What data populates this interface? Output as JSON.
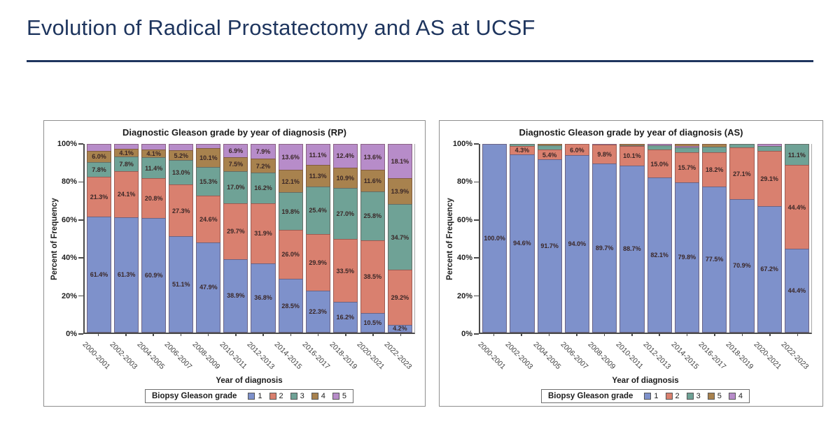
{
  "page": {
    "title": "Evolution of Radical Prostatectomy and AS at UCSF"
  },
  "chart_data": [
    {
      "type": "bar",
      "subtype": "stacked-percent",
      "title": "Diagnostic Gleason grade by year of diagnosis (RP)",
      "xlabel": "Year of diagnosis",
      "ylabel": "Percent of Frequency",
      "ylim": [
        0,
        100
      ],
      "yticks": [
        "0%",
        "20%",
        "40%",
        "60%",
        "80%",
        "100%"
      ],
      "grid": false,
      "legend_position": "bottom",
      "legend_title": "Biopsy Gleason grade",
      "legend": [
        {
          "label": "1",
          "color": "#7e91cb"
        },
        {
          "label": "2",
          "color": "#d9806f"
        },
        {
          "label": "3",
          "color": "#6fa296"
        },
        {
          "label": "4",
          "color": "#a8824e"
        },
        {
          "label": "5",
          "color": "#b78cc9"
        }
      ],
      "categories": [
        "2000-2001",
        "2002-2003",
        "2004-2005",
        "2006-2007",
        "2008-2009",
        "2010-2011",
        "2012-2013",
        "2014-2015",
        "2016-2017",
        "2018-2019",
        "2020-2021",
        "2022-2023"
      ],
      "series": [
        {
          "name": "Gleason grade 1",
          "color": "#7e91cb",
          "values": [
            61.4,
            61.3,
            60.9,
            51.1,
            47.9,
            38.9,
            36.8,
            28.5,
            22.3,
            16.2,
            10.5,
            4.2
          ],
          "labels": [
            "61.4%",
            "61.3%",
            "60.9%",
            "51.1%",
            "47.9%",
            "38.9%",
            "36.8%",
            "28.5%",
            "22.3%",
            "16.2%",
            "10.5%",
            "4.2%"
          ]
        },
        {
          "name": "Gleason grade 2",
          "color": "#d9806f",
          "values": [
            21.3,
            24.1,
            20.8,
            27.3,
            24.6,
            29.7,
            31.9,
            26.0,
            29.9,
            33.5,
            38.5,
            29.2
          ],
          "labels": [
            "21.3%",
            "24.1%",
            "20.8%",
            "27.3%",
            "24.6%",
            "29.7%",
            "31.9%",
            "26.0%",
            "29.9%",
            "33.5%",
            "38.5%",
            "29.2%"
          ]
        },
        {
          "name": "Gleason grade 3",
          "color": "#6fa296",
          "values": [
            7.8,
            7.8,
            11.4,
            13.0,
            15.3,
            17.0,
            16.2,
            19.8,
            25.4,
            27.0,
            25.8,
            34.7
          ],
          "labels": [
            "7.8%",
            "7.8%",
            "11.4%",
            "13.0%",
            "15.3%",
            "17.0%",
            "16.2%",
            "19.8%",
            "25.4%",
            "27.0%",
            "25.8%",
            "34.7%"
          ]
        },
        {
          "name": "Gleason grade 4",
          "color": "#a8824e",
          "values": [
            6.0,
            4.1,
            4.1,
            5.2,
            10.1,
            7.5,
            7.2,
            12.1,
            11.3,
            10.9,
            11.6,
            13.9
          ],
          "labels": [
            "6.0%",
            "4.1%",
            "4.1%",
            "5.2%",
            "10.1%",
            "7.5%",
            "7.2%",
            "12.1%",
            "11.3%",
            "10.9%",
            "11.6%",
            "13.9%"
          ]
        },
        {
          "name": "Gleason grade 5",
          "color": "#b78cc9",
          "values": [
            3.5,
            2.7,
            2.8,
            3.4,
            2.1,
            6.9,
            7.9,
            13.6,
            11.1,
            12.4,
            13.6,
            18.1
          ],
          "labels": [
            "",
            "",
            "",
            "",
            "",
            "6.9%",
            "7.9%",
            "13.6%",
            "11.1%",
            "12.4%",
            "13.6%",
            "18.1%"
          ]
        }
      ]
    },
    {
      "type": "bar",
      "subtype": "stacked-percent",
      "title": "Diagnostic Gleason grade by year of diagnosis (AS)",
      "xlabel": "Year of diagnosis",
      "ylabel": "Percent of Frequency",
      "ylim": [
        0,
        100
      ],
      "yticks": [
        "0%",
        "20%",
        "40%",
        "60%",
        "80%",
        "100%"
      ],
      "grid": false,
      "legend_position": "bottom",
      "legend_title": "Biopsy Gleason grade",
      "legend": [
        {
          "label": "1",
          "color": "#7e91cb"
        },
        {
          "label": "2",
          "color": "#d9806f"
        },
        {
          "label": "3",
          "color": "#6fa296"
        },
        {
          "label": "5",
          "color": "#a8824e"
        },
        {
          "label": "4",
          "color": "#b78cc9"
        }
      ],
      "categories": [
        "2000-2001",
        "2002-2003",
        "2004-2005",
        "2006-2007",
        "2008-2009",
        "2010-2011",
        "2012-2013",
        "2014-2015",
        "2016-2017",
        "2018-2019",
        "2020-2021",
        "2022-2023"
      ],
      "series": [
        {
          "name": "Gleason grade 1",
          "color": "#7e91cb",
          "values": [
            100.0,
            94.6,
            91.7,
            94.0,
            89.7,
            88.7,
            82.1,
            79.8,
            77.5,
            70.9,
            67.2,
            44.4
          ],
          "labels": [
            "100.0%",
            "94.6%",
            "91.7%",
            "94.0%",
            "89.7%",
            "88.7%",
            "82.1%",
            "79.8%",
            "77.5%",
            "70.9%",
            "67.2%",
            "44.4%"
          ]
        },
        {
          "name": "Gleason grade 2",
          "color": "#d9806f",
          "values": [
            0,
            4.3,
            5.4,
            6.0,
            9.8,
            10.1,
            15.0,
            15.7,
            18.2,
            27.1,
            29.1,
            44.4
          ],
          "labels": [
            "",
            "4.3%",
            "5.4%",
            "6.0%",
            "9.8%",
            "10.1%",
            "15.0%",
            "15.7%",
            "18.2%",
            "27.1%",
            "29.1%",
            "44.4%"
          ]
        },
        {
          "name": "Gleason grade 3",
          "color": "#6fa296",
          "values": [
            0,
            1.1,
            2.0,
            0,
            0,
            0.5,
            2.0,
            2.5,
            3.0,
            2.0,
            2.7,
            11.1
          ],
          "labels": [
            "",
            "",
            "",
            "",
            "",
            "",
            "",
            "",
            "",
            "",
            "",
            "11.1%"
          ]
        },
        {
          "name": "Gleason grade 4",
          "color": "#b78cc9",
          "values": [
            0,
            0,
            0,
            0,
            0.5,
            0,
            0.9,
            1.0,
            0,
            0,
            1.0,
            0
          ],
          "labels": [
            "",
            "",
            "",
            "",
            "",
            "",
            "",
            "",
            "",
            "",
            "",
            ""
          ]
        },
        {
          "name": "Gleason grade 5",
          "color": "#a8824e",
          "values": [
            0,
            0,
            0.9,
            0,
            0,
            0.7,
            0,
            1.0,
            1.3,
            0,
            0,
            0
          ],
          "labels": [
            "",
            "",
            "",
            "",
            "",
            "",
            "",
            "",
            "",
            "",
            "",
            ""
          ]
        }
      ]
    }
  ]
}
